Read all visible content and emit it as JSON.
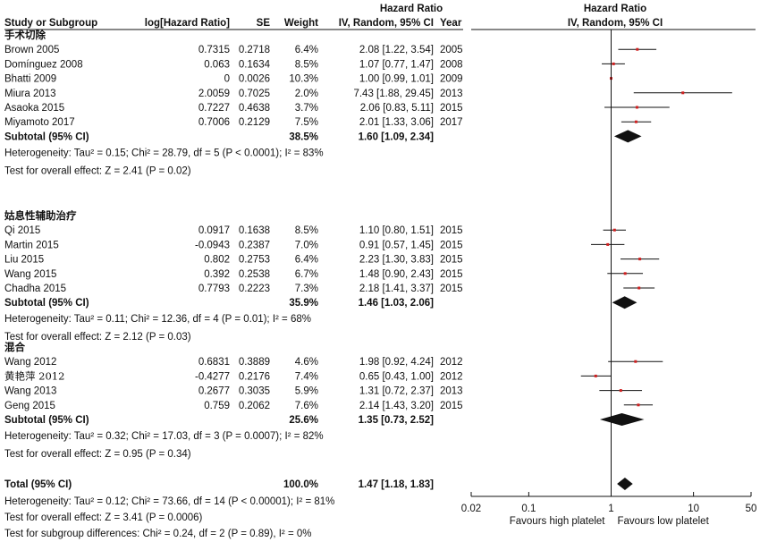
{
  "header": {
    "study": "Study or Subgroup",
    "loghr": "log[Hazard Ratio]",
    "se": "SE",
    "weight": "Weight",
    "hr_title": "Hazard Ratio",
    "hr_method": "IV, Random, 95% CI",
    "year": "Year",
    "plot_title": "Hazard Ratio",
    "plot_method": "IV, Random, 95% CI"
  },
  "chart_data": {
    "type": "forest",
    "scale": "log",
    "xlim": [
      0.02,
      50
    ],
    "ticks": [
      {
        "value": 0.02,
        "label": "0.02"
      },
      {
        "value": 0.1,
        "label": "0.1"
      },
      {
        "value": 1,
        "label": "1"
      },
      {
        "value": 10,
        "label": "10"
      },
      {
        "value": 50,
        "label": "50"
      }
    ],
    "favours_left": "Favours high platelet",
    "favours_right": "Favours low platelet",
    "marker_color": "#d02020",
    "groups": [
      {
        "name": "手术切除",
        "studies": [
          {
            "study": "Brown 2005",
            "loghr": "0.7315",
            "se": "0.2718",
            "weight": "6.4%",
            "ci": "2.08 [1.22, 3.54]",
            "year": "2005",
            "hr": 2.08,
            "lo": 1.22,
            "hi": 3.54
          },
          {
            "study": "Domínguez 2008",
            "loghr": "0.063",
            "se": "0.1634",
            "weight": "8.5%",
            "ci": "1.07 [0.77, 1.47]",
            "year": "2008",
            "hr": 1.07,
            "lo": 0.77,
            "hi": 1.47
          },
          {
            "study": "Bhatti 2009",
            "loghr": "0",
            "se": "0.0026",
            "weight": "10.3%",
            "ci": "1.00 [0.99, 1.01]",
            "year": "2009",
            "hr": 1.0,
            "lo": 0.99,
            "hi": 1.01
          },
          {
            "study": "Miura 2013",
            "loghr": "2.0059",
            "se": "0.7025",
            "weight": "2.0%",
            "ci": "7.43 [1.88, 29.45]",
            "year": "2013",
            "hr": 7.43,
            "lo": 1.88,
            "hi": 29.45
          },
          {
            "study": "Asaoka 2015",
            "loghr": "0.7227",
            "se": "0.4638",
            "weight": "3.7%",
            "ci": "2.06 [0.83, 5.11]",
            "year": "2015",
            "hr": 2.06,
            "lo": 0.83,
            "hi": 5.11
          },
          {
            "study": "Miyamoto 2017",
            "loghr": "0.7006",
            "se": "0.2129",
            "weight": "7.5%",
            "ci": "2.01 [1.33, 3.06]",
            "year": "2017",
            "hr": 2.01,
            "lo": 1.33,
            "hi": 3.06
          }
        ],
        "subtotal": {
          "label": "Subtotal (95% CI)",
          "weight": "38.5%",
          "ci": "1.60 [1.09, 2.34]",
          "hr": 1.6,
          "lo": 1.09,
          "hi": 2.34
        },
        "heterogeneity": "Heterogeneity: Tau² = 0.15; Chi² = 28.79, df = 5 (P < 0.0001); I² = 83%",
        "overall": "Test for overall effect: Z = 2.41 (P = 0.02)"
      },
      {
        "name": "姑息性辅助治疗",
        "studies": [
          {
            "study": "Qi 2015",
            "loghr": "0.0917",
            "se": "0.1638",
            "weight": "8.5%",
            "ci": "1.10 [0.80, 1.51]",
            "year": "2015",
            "hr": 1.1,
            "lo": 0.8,
            "hi": 1.51
          },
          {
            "study": "Martin 2015",
            "loghr": "-0.0943",
            "se": "0.2387",
            "weight": "7.0%",
            "ci": "0.91 [0.57, 1.45]",
            "year": "2015",
            "hr": 0.91,
            "lo": 0.57,
            "hi": 1.45
          },
          {
            "study": "Liu 2015",
            "loghr": "0.802",
            "se": "0.2753",
            "weight": "6.4%",
            "ci": "2.23 [1.30, 3.83]",
            "year": "2015",
            "hr": 2.23,
            "lo": 1.3,
            "hi": 3.83
          },
          {
            "study": "Wang 2015",
            "loghr": "0.392",
            "se": "0.2538",
            "weight": "6.7%",
            "ci": "1.48 [0.90, 2.43]",
            "year": "2015",
            "hr": 1.48,
            "lo": 0.9,
            "hi": 2.43
          },
          {
            "study": "Chadha 2015",
            "loghr": "0.7793",
            "se": "0.2223",
            "weight": "7.3%",
            "ci": "2.18 [1.41, 3.37]",
            "year": "2015",
            "hr": 2.18,
            "lo": 1.41,
            "hi": 3.37
          }
        ],
        "subtotal": {
          "label": "Subtotal (95% CI)",
          "weight": "35.9%",
          "ci": "1.46 [1.03, 2.06]",
          "hr": 1.46,
          "lo": 1.03,
          "hi": 2.06
        },
        "heterogeneity": "Heterogeneity: Tau² = 0.11; Chi² = 12.36, df = 4 (P = 0.01); I² = 68%",
        "overall": "Test for overall effect: Z = 2.12 (P = 0.03)"
      },
      {
        "name": "混合",
        "studies": [
          {
            "study": "Wang 2012",
            "loghr": "0.6831",
            "se": "0.3889",
            "weight": "4.6%",
            "ci": "1.98 [0.92, 4.24]",
            "year": "2012",
            "hr": 1.98,
            "lo": 0.92,
            "hi": 4.24
          },
          {
            "study": "黄艳萍 2012",
            "loghr": "-0.4277",
            "se": "0.2176",
            "weight": "7.4%",
            "ci": "0.65 [0.43, 1.00]",
            "year": "2012",
            "hr": 0.65,
            "lo": 0.43,
            "hi": 1.0
          },
          {
            "study": "Wang 2013",
            "loghr": "0.2677",
            "se": "0.3035",
            "weight": "5.9%",
            "ci": "1.31 [0.72, 2.37]",
            "year": "2013",
            "hr": 1.31,
            "lo": 0.72,
            "hi": 2.37
          },
          {
            "study": "Geng  2015",
            "loghr": "0.759",
            "se": "0.2062",
            "weight": "7.6%",
            "ci": "2.14 [1.43, 3.20]",
            "year": "2015",
            "hr": 2.14,
            "lo": 1.43,
            "hi": 3.2
          }
        ],
        "subtotal": {
          "label": "Subtotal (95% CI)",
          "weight": "25.6%",
          "ci": "1.35 [0.73, 2.52]",
          "hr": 1.35,
          "lo": 0.73,
          "hi": 2.52
        },
        "heterogeneity": "Heterogeneity: Tau² = 0.32; Chi² = 17.03, df = 3 (P = 0.0007); I² = 82%",
        "overall": "Test for overall effect: Z = 0.95 (P = 0.34)"
      }
    ],
    "total": {
      "label": "Total (95% CI)",
      "weight": "100.0%",
      "ci": "1.47 [1.18, 1.83]",
      "hr": 1.47,
      "lo": 1.18,
      "hi": 1.83,
      "heterogeneity": "Heterogeneity: Tau² = 0.12; Chi² = 73.66, df = 14 (P < 0.00001); I² = 81%",
      "overall": "Test for overall effect: Z = 3.41 (P = 0.0006)",
      "subgroup": "Test for subgroup differences: Chi² = 0.24, df = 2 (P = 0.89), I² = 0%"
    }
  }
}
